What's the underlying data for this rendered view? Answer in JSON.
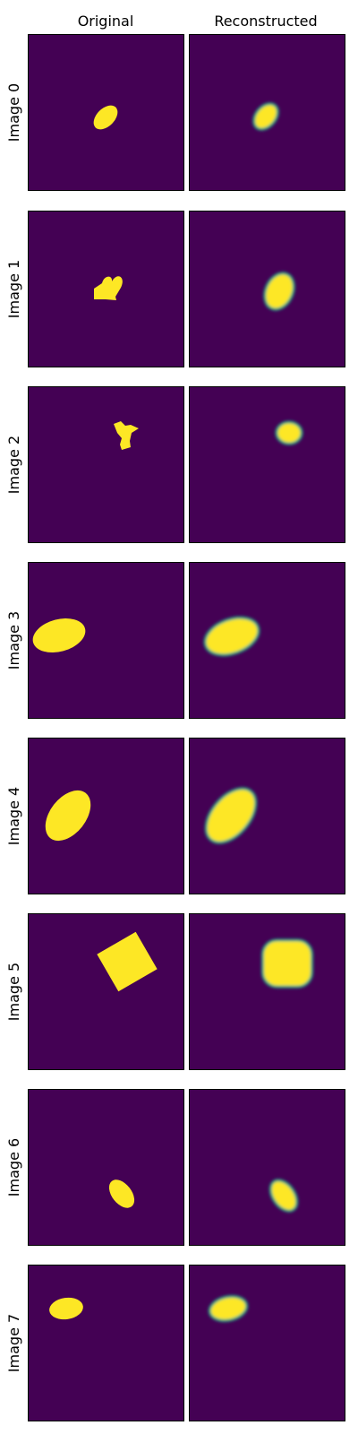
{
  "chart_data": {
    "type": "image_grid",
    "column_titles": [
      "Original",
      "Reconstructed"
    ],
    "row_labels": [
      "Image 0",
      "Image 1",
      "Image 2",
      "Image 3",
      "Image 4",
      "Image 5",
      "Image 6",
      "Image 7"
    ],
    "colors": {
      "background": "#440154",
      "shape": "#fde725",
      "edge": "#22a884",
      "frame": "#000000"
    },
    "axes": {
      "ticks": false,
      "grid": false
    },
    "images": [
      {
        "original": "rotated-ellipse",
        "reconstructed": "rotated-ellipse"
      },
      {
        "original": "heart",
        "reconstructed": "rotated-ellipse"
      },
      {
        "original": "irregular-star",
        "reconstructed": "ellipse"
      },
      {
        "original": "rotated-ellipse",
        "reconstructed": "rotated-ellipse"
      },
      {
        "original": "rotated-ellipse",
        "reconstructed": "rotated-ellipse"
      },
      {
        "original": "rotated-square",
        "reconstructed": "rounded-square"
      },
      {
        "original": "rotated-ellipse",
        "reconstructed": "rotated-ellipse"
      },
      {
        "original": "rotated-ellipse",
        "reconstructed": "rotated-ellipse"
      }
    ]
  }
}
